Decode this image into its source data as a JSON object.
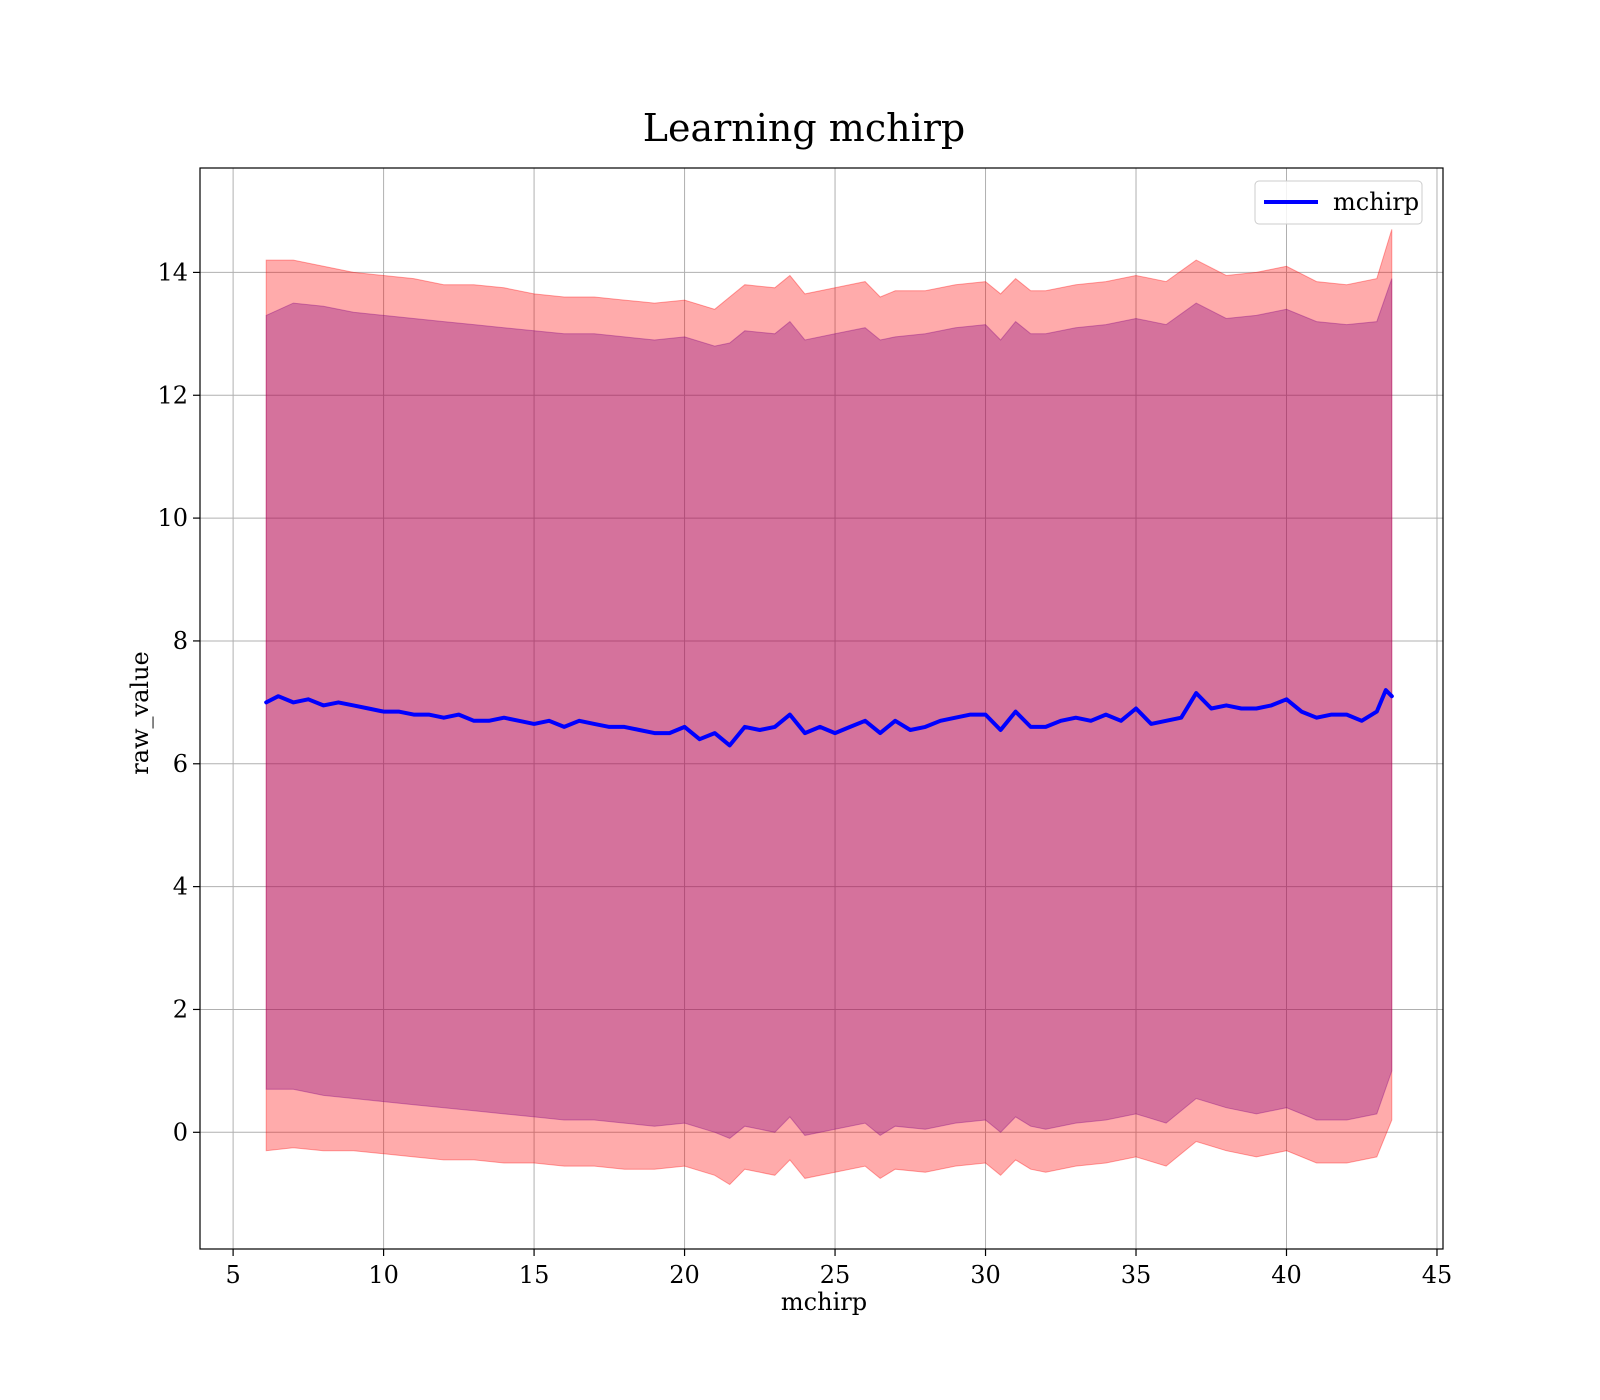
{
  "chart_data": {
    "type": "line",
    "title": "Learning mchirp",
    "xlabel": "mchirp",
    "ylabel": "raw_value",
    "xlim": [
      3.9,
      45.2
    ],
    "ylim": [
      -1.9,
      15.7
    ],
    "x_ticks": [
      5,
      10,
      15,
      20,
      25,
      30,
      35,
      40,
      45
    ],
    "y_ticks": [
      0,
      2,
      4,
      6,
      8,
      10,
      12,
      14
    ],
    "x_tick_labels": [
      "5",
      "10",
      "15",
      "20",
      "25",
      "30",
      "35",
      "40",
      "45"
    ],
    "y_tick_labels": [
      "0",
      "2",
      "4",
      "6",
      "8",
      "10",
      "12",
      "14"
    ],
    "grid": true,
    "legend": {
      "placement": "top-right",
      "entries": [
        {
          "label": "mchirp",
          "color": "#0000ff"
        }
      ]
    },
    "series": [
      {
        "name": "mchirp",
        "color": "#0000ff",
        "x": [
          6.1,
          6.5,
          7.0,
          7.5,
          8.0,
          8.5,
          9.0,
          9.5,
          10.0,
          10.5,
          11.0,
          11.5,
          12.0,
          12.5,
          13.0,
          13.5,
          14.0,
          14.5,
          15.0,
          15.5,
          16.0,
          16.5,
          17.0,
          17.5,
          18.0,
          18.5,
          19.0,
          19.5,
          20.0,
          20.5,
          21.0,
          21.5,
          22.0,
          22.5,
          23.0,
          23.5,
          24.0,
          24.5,
          25.0,
          25.5,
          26.0,
          26.5,
          27.0,
          27.5,
          28.0,
          28.5,
          29.0,
          29.5,
          30.0,
          30.5,
          31.0,
          31.5,
          32.0,
          32.5,
          33.0,
          33.5,
          34.0,
          34.5,
          35.0,
          35.5,
          36.0,
          36.5,
          37.0,
          37.5,
          38.0,
          38.5,
          39.0,
          39.5,
          40.0,
          40.5,
          41.0,
          41.5,
          42.0,
          42.5,
          43.0,
          43.3,
          43.5
        ],
        "y": [
          7.0,
          7.1,
          7.0,
          7.05,
          6.95,
          7.0,
          6.95,
          6.9,
          6.85,
          6.85,
          6.8,
          6.8,
          6.75,
          6.8,
          6.7,
          6.7,
          6.75,
          6.7,
          6.65,
          6.7,
          6.6,
          6.7,
          6.65,
          6.6,
          6.6,
          6.55,
          6.5,
          6.5,
          6.6,
          6.4,
          6.5,
          6.3,
          6.6,
          6.55,
          6.6,
          6.8,
          6.5,
          6.6,
          6.5,
          6.6,
          6.7,
          6.5,
          6.7,
          6.55,
          6.6,
          6.7,
          6.75,
          6.8,
          6.8,
          6.55,
          6.85,
          6.6,
          6.6,
          6.7,
          6.75,
          6.7,
          6.8,
          6.7,
          6.9,
          6.65,
          6.7,
          6.75,
          7.15,
          6.9,
          6.95,
          6.9,
          6.9,
          6.95,
          7.05,
          6.85,
          6.75,
          6.8,
          6.8,
          6.7,
          6.85,
          7.2,
          7.1
        ]
      }
    ],
    "bands": [
      {
        "color": "#ff0000",
        "opacity": 0.33,
        "x": [
          6.1,
          7.0,
          8.0,
          9.0,
          10.0,
          11.0,
          12.0,
          13.0,
          14.0,
          15.0,
          16.0,
          17.0,
          18.0,
          19.0,
          20.0,
          21.0,
          21.5,
          22.0,
          23.0,
          23.5,
          24.0,
          25.0,
          26.0,
          26.5,
          27.0,
          28.0,
          29.0,
          30.0,
          30.5,
          31.0,
          31.5,
          32.0,
          33.0,
          34.0,
          35.0,
          36.0,
          37.0,
          38.0,
          39.0,
          40.0,
          41.0,
          42.0,
          43.0,
          43.5
        ],
        "upper": [
          14.2,
          14.2,
          14.1,
          14.0,
          13.95,
          13.9,
          13.8,
          13.8,
          13.75,
          13.65,
          13.6,
          13.6,
          13.55,
          13.5,
          13.55,
          13.4,
          13.6,
          13.8,
          13.75,
          13.95,
          13.65,
          13.75,
          13.85,
          13.6,
          13.7,
          13.7,
          13.8,
          13.85,
          13.65,
          13.9,
          13.7,
          13.7,
          13.8,
          13.85,
          13.95,
          13.85,
          14.2,
          13.95,
          14.0,
          14.1,
          13.85,
          13.8,
          13.9,
          14.7
        ],
        "lower": [
          -0.3,
          -0.25,
          -0.3,
          -0.3,
          -0.35,
          -0.4,
          -0.45,
          -0.45,
          -0.5,
          -0.5,
          -0.55,
          -0.55,
          -0.6,
          -0.6,
          -0.55,
          -0.7,
          -0.85,
          -0.6,
          -0.7,
          -0.45,
          -0.75,
          -0.65,
          -0.55,
          -0.75,
          -0.6,
          -0.65,
          -0.55,
          -0.5,
          -0.7,
          -0.45,
          -0.6,
          -0.65,
          -0.55,
          -0.5,
          -0.4,
          -0.55,
          -0.15,
          -0.3,
          -0.4,
          -0.3,
          -0.5,
          -0.5,
          -0.4,
          0.2
        ]
      },
      {
        "color": "#800080",
        "opacity": 0.33,
        "x": [
          6.1,
          7.0,
          8.0,
          9.0,
          10.0,
          11.0,
          12.0,
          13.0,
          14.0,
          15.0,
          16.0,
          17.0,
          18.0,
          19.0,
          20.0,
          21.0,
          21.5,
          22.0,
          23.0,
          23.5,
          24.0,
          25.0,
          26.0,
          26.5,
          27.0,
          28.0,
          29.0,
          30.0,
          30.5,
          31.0,
          31.5,
          32.0,
          33.0,
          34.0,
          35.0,
          36.0,
          37.0,
          38.0,
          39.0,
          40.0,
          41.0,
          42.0,
          43.0,
          43.5
        ],
        "upper": [
          13.3,
          13.5,
          13.45,
          13.35,
          13.3,
          13.25,
          13.2,
          13.15,
          13.1,
          13.05,
          13.0,
          13.0,
          12.95,
          12.9,
          12.95,
          12.8,
          12.85,
          13.05,
          13.0,
          13.2,
          12.9,
          13.0,
          13.1,
          12.9,
          12.95,
          13.0,
          13.1,
          13.15,
          12.9,
          13.2,
          13.0,
          13.0,
          13.1,
          13.15,
          13.25,
          13.15,
          13.5,
          13.25,
          13.3,
          13.4,
          13.2,
          13.15,
          13.2,
          13.9
        ],
        "lower": [
          0.7,
          0.7,
          0.6,
          0.55,
          0.5,
          0.45,
          0.4,
          0.35,
          0.3,
          0.25,
          0.2,
          0.2,
          0.15,
          0.1,
          0.15,
          0.0,
          -0.1,
          0.1,
          0.0,
          0.25,
          -0.05,
          0.05,
          0.15,
          -0.05,
          0.1,
          0.05,
          0.15,
          0.2,
          0.0,
          0.25,
          0.1,
          0.05,
          0.15,
          0.2,
          0.3,
          0.15,
          0.55,
          0.4,
          0.3,
          0.4,
          0.2,
          0.2,
          0.3,
          1.0
        ]
      }
    ]
  }
}
